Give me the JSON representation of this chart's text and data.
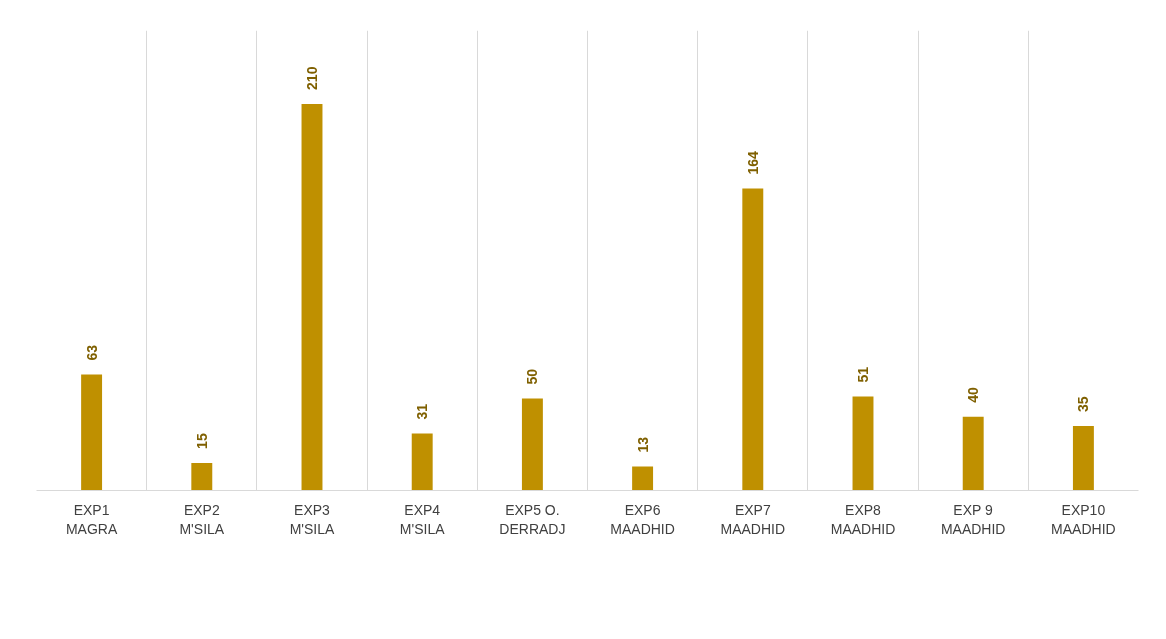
{
  "chart_data": {
    "type": "bar",
    "categories": [
      "EXP1\nMAGRA",
      "EXP2\nM'SILA",
      "EXP3\nM'SILA",
      "EXP4\nM'SILA",
      "EXP5 O.\nDERRADJ",
      "EXP6\nMAADHID",
      "EXP7\nMAADHID",
      "EXP8\nMAADHID",
      "EXP 9\nMAADHID",
      "EXP10\nMAADHID"
    ],
    "values": [
      63,
      15,
      210,
      31,
      50,
      13,
      164,
      51,
      40,
      35
    ],
    "color": "#bf9000",
    "data_labels": true,
    "grid": "x"
  }
}
